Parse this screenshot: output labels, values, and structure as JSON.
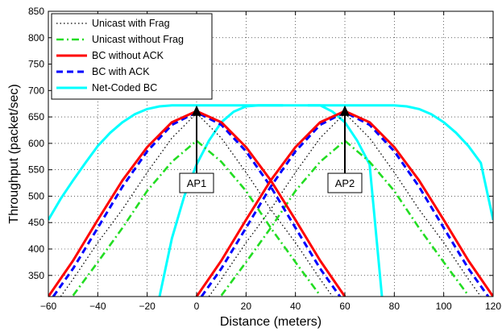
{
  "chart_data": {
    "type": "line",
    "title": "",
    "xlabel": "Distance (meters)",
    "ylabel": "Throughput (packet/sec)",
    "xlim": [
      -60,
      120
    ],
    "ylim": [
      310,
      850
    ],
    "xticks": [
      -60,
      -40,
      -20,
      0,
      20,
      40,
      60,
      80,
      100,
      120
    ],
    "yticks": [
      350,
      400,
      450,
      500,
      550,
      600,
      650,
      700,
      750,
      800,
      850
    ],
    "grid": true,
    "legend_position": "top-left",
    "series": [
      {
        "name": "Unicast with Frag",
        "color": "#000000",
        "style": "dotted",
        "curves": [
          {
            "x": [
              -55,
              -50,
              -40,
              -30,
              -20,
              -10,
              0,
              10,
              20,
              30,
              40,
              50,
              55
            ],
            "y": [
              310,
              343,
              412,
              475,
              545,
              610,
              657,
              610,
              545,
              475,
              412,
              343,
              310
            ]
          },
          {
            "x": [
              5,
              10,
              20,
              30,
              40,
              50,
              60,
              70,
              80,
              90,
              100,
              110,
              115
            ],
            "y": [
              310,
              343,
              412,
              475,
              545,
              610,
              657,
              610,
              545,
              475,
              412,
              343,
              310
            ]
          }
        ]
      },
      {
        "name": "Unicast without Frag",
        "color": "#22dd22",
        "style": "dashdot",
        "curves": [
          {
            "x": [
              -50,
              -40,
              -30,
              -20,
              -10,
              0,
              10,
              20,
              30,
              40,
              50
            ],
            "y": [
              312,
              375,
              440,
              510,
              565,
              605,
              565,
              510,
              440,
              375,
              312
            ]
          },
          {
            "x": [
              10,
              20,
              30,
              40,
              50,
              60,
              70,
              80,
              90,
              100,
              110
            ],
            "y": [
              312,
              375,
              440,
              510,
              565,
              605,
              565,
              510,
              440,
              375,
              312
            ]
          }
        ]
      },
      {
        "name": "BC without ACK",
        "color": "#ff0000",
        "style": "solid",
        "curves": [
          {
            "x": [
              -60,
              -50,
              -40,
              -30,
              -20,
              -10,
              0,
              10,
              20,
              30,
              40,
              50,
              60
            ],
            "y": [
              310,
              378,
              455,
              530,
              593,
              640,
              661,
              640,
              593,
              530,
              455,
              378,
              310
            ]
          },
          {
            "x": [
              0,
              10,
              20,
              30,
              40,
              50,
              60,
              70,
              80,
              90,
              100,
              110,
              120
            ],
            "y": [
              310,
              378,
              455,
              530,
              593,
              640,
              661,
              640,
              593,
              530,
              455,
              378,
              310
            ]
          }
        ]
      },
      {
        "name": "BC with ACK",
        "color": "#0000ff",
        "style": "dashed",
        "curves": [
          {
            "x": [
              -58,
              -50,
              -40,
              -30,
              -20,
              -10,
              0,
              10,
              20,
              30,
              40,
              50,
              58
            ],
            "y": [
              310,
              363,
              440,
              518,
              585,
              635,
              659,
              635,
              585,
              518,
              440,
              363,
              310
            ]
          },
          {
            "x": [
              2,
              10,
              20,
              30,
              40,
              50,
              60,
              70,
              80,
              90,
              100,
              110,
              118
            ],
            "y": [
              310,
              363,
              440,
              518,
              585,
              635,
              659,
              635,
              585,
              518,
              440,
              363,
              310
            ]
          }
        ]
      },
      {
        "name": "Net-Coded BC",
        "color": "#00ffff",
        "style": "solid",
        "curves": [
          {
            "x": [
              -60,
              -55,
              -50,
              -45,
              -40,
              -35,
              -30,
              -25,
              -20,
              -15,
              -10,
              -5,
              0,
              5,
              10,
              15,
              20,
              25,
              30,
              35,
              40,
              45,
              50,
              55,
              60,
              65,
              70,
              75,
              80,
              85,
              90,
              95,
              100,
              105,
              110,
              115,
              120
            ],
            "y": [
              455,
              495,
              530,
              563,
              595,
              620,
              640,
              655,
              665,
              670,
              672,
              672,
              672,
              672,
              672,
              672,
              672,
              672,
              672,
              672,
              672,
              672,
              672,
              672,
              672,
              672,
              672,
              672,
              672,
              670,
              665,
              655,
              640,
              620,
              595,
              563,
              455
            ]
          },
          {
            "x": [
              -15,
              -10,
              -5,
              0,
              5,
              10,
              15,
              20,
              25,
              30,
              35
            ],
            "y": [
              310,
              420,
              500,
              560,
              605,
              640,
              660,
              670,
              672,
              672,
              672
            ]
          },
          {
            "x": [
              45,
              50,
              55,
              60,
              65,
              70,
              75
            ],
            "y": [
              672,
              672,
              660,
              640,
              605,
              560,
              310
            ]
          }
        ]
      }
    ],
    "annotations": [
      {
        "text": "AP1",
        "x": 0,
        "y": 525,
        "arrow_to": [
          0,
          672
        ]
      },
      {
        "text": "AP2",
        "x": 60,
        "y": 525,
        "arrow_to": [
          60,
          672
        ]
      }
    ]
  }
}
